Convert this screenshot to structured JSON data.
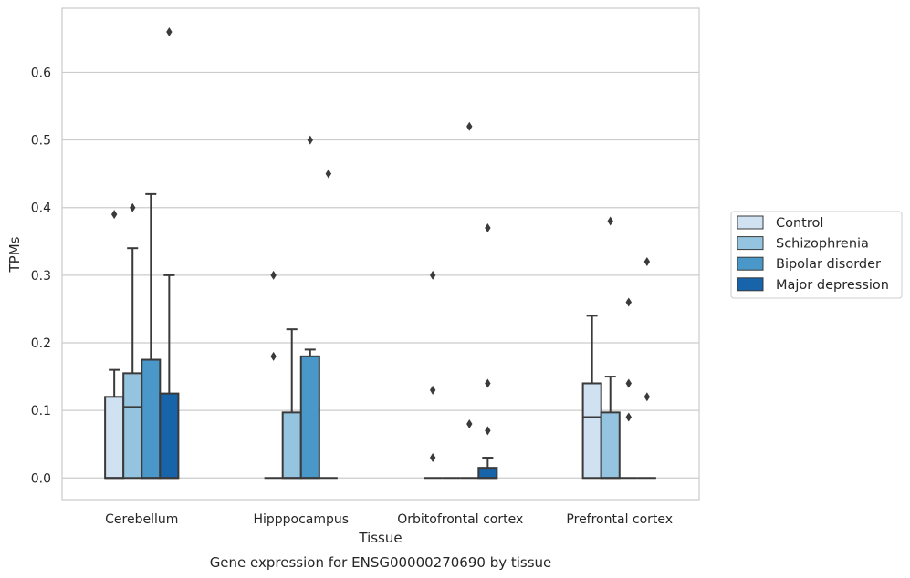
{
  "chart_data": {
    "type": "box",
    "title": "",
    "caption": "Gene expression for ENSG00000270690 by tissue",
    "xlabel": "Tissue",
    "ylabel": "TPMs",
    "ylim": [
      -0.032,
      0.695
    ],
    "yticks": [
      0.0,
      0.1,
      0.2,
      0.3,
      0.4,
      0.5,
      0.6
    ],
    "ytick_labels": [
      "0.0",
      "0.1",
      "0.2",
      "0.3",
      "0.4",
      "0.5",
      "0.6"
    ],
    "grid": "horizontal",
    "legend_position": "right",
    "categories": [
      "Cerebellum",
      "Hipppocampus",
      "Orbitofrontal cortex",
      "Prefrontal cortex"
    ],
    "series": [
      {
        "name": "Control",
        "color": "#d0e1f2",
        "boxes": [
          {
            "q1": 0.0,
            "median": 0.0,
            "q3": 0.12,
            "whisker_low": 0.0,
            "whisker_high": 0.16,
            "outliers": [
              0.39
            ]
          },
          {
            "q1": 0.0,
            "median": 0.0,
            "q3": 0.0,
            "whisker_low": 0.0,
            "whisker_high": 0.0,
            "outliers": [
              0.3,
              0.18
            ]
          },
          {
            "q1": 0.0,
            "median": 0.0,
            "q3": 0.0,
            "whisker_low": 0.0,
            "whisker_high": 0.0,
            "outliers": [
              0.3,
              0.13,
              0.03
            ]
          },
          {
            "q1": 0.0,
            "median": 0.09,
            "q3": 0.14,
            "whisker_low": 0.0,
            "whisker_high": 0.24,
            "outliers": []
          }
        ]
      },
      {
        "name": "Schizophrenia",
        "color": "#94c4df",
        "boxes": [
          {
            "q1": 0.0,
            "median": 0.105,
            "q3": 0.155,
            "whisker_low": 0.0,
            "whisker_high": 0.34,
            "outliers": [
              0.4
            ]
          },
          {
            "q1": 0.0,
            "median": 0.0,
            "q3": 0.097,
            "whisker_low": 0.0,
            "whisker_high": 0.22,
            "outliers": []
          },
          {
            "q1": 0.0,
            "median": 0.0,
            "q3": 0.0,
            "whisker_low": 0.0,
            "whisker_high": 0.0,
            "outliers": []
          },
          {
            "q1": 0.0,
            "median": 0.0,
            "q3": 0.097,
            "whisker_low": 0.0,
            "whisker_high": 0.15,
            "outliers": [
              0.38
            ]
          }
        ]
      },
      {
        "name": "Bipolar disorder",
        "color": "#4a98c9",
        "boxes": [
          {
            "q1": 0.0,
            "median": 0.0,
            "q3": 0.175,
            "whisker_low": 0.0,
            "whisker_high": 0.42,
            "outliers": []
          },
          {
            "q1": 0.0,
            "median": 0.0,
            "q3": 0.18,
            "whisker_low": 0.0,
            "whisker_high": 0.19,
            "outliers": [
              0.5
            ]
          },
          {
            "q1": 0.0,
            "median": 0.0,
            "q3": 0.0,
            "whisker_low": 0.0,
            "whisker_high": 0.0,
            "outliers": [
              0.52,
              0.08
            ]
          },
          {
            "q1": 0.0,
            "median": 0.0,
            "q3": 0.0,
            "whisker_low": 0.0,
            "whisker_high": 0.0,
            "outliers": [
              0.26,
              0.14,
              0.09
            ]
          }
        ]
      },
      {
        "name": "Major depression",
        "color": "#1764ab",
        "boxes": [
          {
            "q1": 0.0,
            "median": 0.0,
            "q3": 0.125,
            "whisker_low": 0.0,
            "whisker_high": 0.3,
            "outliers": [
              0.66
            ]
          },
          {
            "q1": 0.0,
            "median": 0.0,
            "q3": 0.0,
            "whisker_low": 0.0,
            "whisker_high": 0.0,
            "outliers": [
              0.45
            ]
          },
          {
            "q1": 0.0,
            "median": 0.0,
            "q3": 0.015,
            "whisker_low": 0.0,
            "whisker_high": 0.03,
            "outliers": [
              0.37,
              0.14,
              0.07
            ]
          },
          {
            "q1": 0.0,
            "median": 0.0,
            "q3": 0.0,
            "whisker_low": 0.0,
            "whisker_high": 0.0,
            "outliers": [
              0.32,
              0.12
            ]
          }
        ]
      }
    ]
  }
}
